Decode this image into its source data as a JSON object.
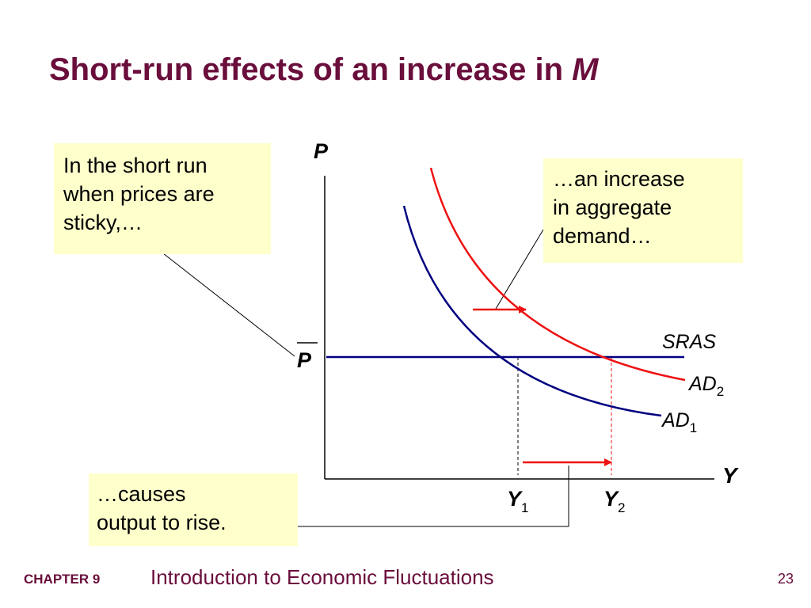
{
  "slide": {
    "title_main": "Short-run effects of an increase in ",
    "title_var": "M"
  },
  "diagram": {
    "axis_y_label": "P",
    "axis_x_label": "Y",
    "price_level_label": "P",
    "sras_label": "SRAS",
    "ad2_label": "AD",
    "ad2_sub": "2",
    "ad1_label": "AD",
    "ad1_sub": "1",
    "y1_label": "Y",
    "y1_sub": "1",
    "y2_label": "Y",
    "y2_sub": "2",
    "colors": {
      "ad1": "#000080",
      "ad2": "#ee1111",
      "sras": "#000080",
      "arrow": "#ee1111",
      "title": "#6a0e3c",
      "note_bg": "#ffffcc"
    }
  },
  "notes": {
    "note1": [
      "In the short run",
      "when prices are",
      "sticky,…"
    ],
    "note2": [
      "…an increase",
      "in aggregate",
      "demand…"
    ],
    "note3": [
      "…causes",
      "output to rise."
    ]
  },
  "footer": {
    "chapter": "CHAPTER 9",
    "title": "Introduction to Economic Fluctuations",
    "page": "23"
  }
}
